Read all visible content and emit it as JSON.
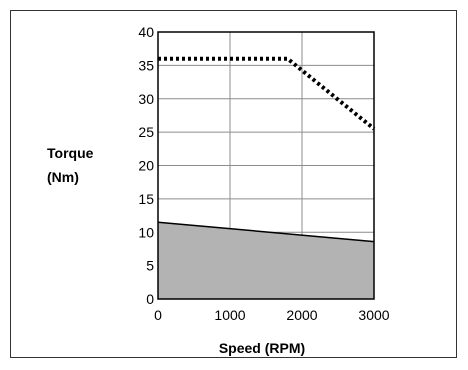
{
  "chart_data": {
    "type": "area",
    "xlabel": "Speed (RPM)",
    "ylabel_lines": [
      "Torque",
      "(Nm)"
    ],
    "xlim": [
      0,
      3000
    ],
    "ylim": [
      0,
      40
    ],
    "x_ticks": [
      0,
      1000,
      2000,
      3000
    ],
    "y_ticks": [
      0,
      5,
      10,
      15,
      20,
      25,
      30,
      35,
      40
    ],
    "grid": true,
    "legend": "none",
    "series": [
      {
        "style": "dotted-line",
        "color": "#000000",
        "points": [
          [
            0,
            36
          ],
          [
            1800,
            36
          ],
          [
            3000,
            25.5
          ]
        ]
      },
      {
        "style": "filled-area",
        "color": "#000000",
        "fill": "#b3b3b3",
        "points": [
          [
            0,
            11.5
          ],
          [
            3000,
            8.6
          ]
        ]
      }
    ]
  }
}
